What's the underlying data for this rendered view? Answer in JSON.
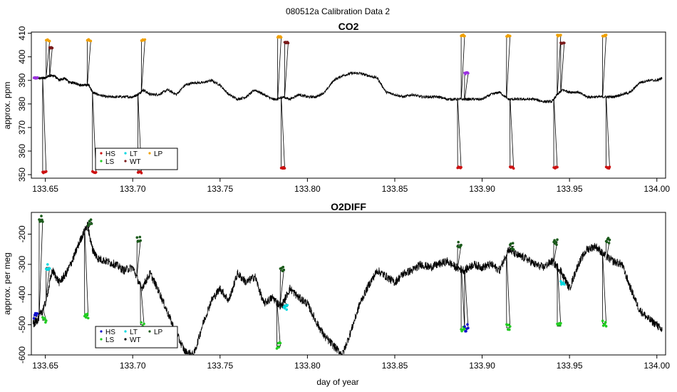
{
  "title": "080512a   Calibration Data 2",
  "xlabel": "day of year",
  "x_ticks": [
    "133.65",
    "133.70",
    "133.75",
    "133.80",
    "133.85",
    "133.90",
    "133.95",
    "134.00"
  ],
  "x_tick_values": [
    133.65,
    133.7,
    133.75,
    133.8,
    133.85,
    133.9,
    133.95,
    134.0
  ],
  "xlim": [
    133.642,
    134.005
  ],
  "colors": {
    "HS": "#cc1111",
    "LS": "#22cc22",
    "LT": "#00d8e0",
    "WT": "#7a1a1a",
    "LP": "#f0a000",
    "HS_O2": "#1111cc",
    "LS_O2": "#22cc22",
    "LT_O2": "#00d8e0",
    "WT_O2": "#000000",
    "LP_O2": "#1a5a1a",
    "purple": "#9a30e0",
    "trace": "#000000"
  },
  "chart_data": [
    {
      "type": "line",
      "title": "CO2",
      "ylabel": "approx. ppm",
      "ylim": [
        348.5,
        410.5
      ],
      "y_ticks": [
        "350",
        "360",
        "370",
        "380",
        "390",
        "400",
        "410"
      ],
      "y_tick_values": [
        350,
        360,
        370,
        380,
        390,
        400,
        410
      ],
      "legend": {
        "placement": "bottom-left",
        "entries": [
          {
            "label": "HS",
            "color": "#cc1111"
          },
          {
            "label": "LT",
            "color": "#00d8e0"
          },
          {
            "label": "LP",
            "color": "#f0a000"
          },
          {
            "label": "LS",
            "color": "#22cc22"
          },
          {
            "label": "WT",
            "color": "#7a1a1a"
          }
        ]
      },
      "baseline": {
        "x": [
          133.643,
          133.6455,
          133.648,
          133.65,
          133.652,
          133.655,
          133.658,
          133.661,
          133.664,
          133.667,
          133.67,
          133.673,
          133.675,
          133.677,
          133.68,
          133.685,
          133.69,
          133.695,
          133.7,
          133.703,
          133.706,
          133.71,
          133.715,
          133.72,
          133.725,
          133.73,
          133.735,
          133.74,
          133.745,
          133.75,
          133.755,
          133.76,
          133.765,
          133.77,
          133.775,
          133.78,
          133.783,
          133.786,
          133.79,
          133.795,
          133.8,
          133.805,
          133.81,
          133.815,
          133.82,
          133.825,
          133.83,
          133.835,
          133.84,
          133.845,
          133.85,
          133.855,
          133.86,
          133.865,
          133.87,
          133.875,
          133.88,
          133.885,
          133.89,
          133.895,
          133.9,
          133.905,
          133.91,
          133.915,
          133.92,
          133.925,
          133.93,
          133.935,
          133.94,
          133.943,
          133.946,
          133.95,
          133.955,
          133.96,
          133.965,
          133.97,
          133.975,
          133.98,
          133.985,
          133.99,
          133.995,
          134.0,
          134.003
        ],
        "y": [
          391,
          391,
          391,
          391,
          392,
          392,
          390,
          391,
          389,
          389,
          388,
          388,
          388,
          385,
          384,
          383,
          383,
          383,
          383,
          384,
          386,
          384,
          384,
          386,
          384,
          388,
          389,
          389,
          390,
          388,
          384,
          382,
          383,
          386,
          384,
          382,
          382,
          383,
          382,
          384,
          383,
          383,
          385,
          390,
          392,
          393,
          393,
          392,
          391,
          385,
          384,
          383,
          384,
          383,
          383,
          383,
          382,
          382,
          382,
          382,
          382,
          384,
          385,
          382,
          382,
          382,
          382,
          381,
          381,
          384,
          386,
          385,
          385,
          383,
          383,
          383,
          383,
          384,
          385,
          389,
          390,
          390,
          391
        ]
      },
      "calibrations": [
        {
          "x_start": 133.6485,
          "x_end": 133.6505,
          "value": 351,
          "gas": "HS"
        },
        {
          "x_start": 133.6505,
          "x_end": 133.6525,
          "value": 407,
          "gas": "LP"
        },
        {
          "x_start": 133.6525,
          "x_end": 133.654,
          "value": 404,
          "gas": "WT"
        },
        {
          "x_start": 133.674,
          "x_end": 133.676,
          "value": 407,
          "gas": "LP"
        },
        {
          "x_start": 133.677,
          "x_end": 133.679,
          "value": 351,
          "gas": "HS"
        },
        {
          "x_start": 133.703,
          "x_end": 133.705,
          "value": 351,
          "gas": "HS"
        },
        {
          "x_start": 133.705,
          "x_end": 133.707,
          "value": 407,
          "gas": "LP"
        },
        {
          "x_start": 133.783,
          "x_end": 133.785,
          "value": 408.5,
          "gas": "LP"
        },
        {
          "x_start": 133.785,
          "x_end": 133.787,
          "value": 353,
          "gas": "HS"
        },
        {
          "x_start": 133.787,
          "x_end": 133.789,
          "value": 406,
          "gas": "WT"
        },
        {
          "x_start": 133.886,
          "x_end": 133.888,
          "value": 353,
          "gas": "HS"
        },
        {
          "x_start": 133.888,
          "x_end": 133.89,
          "value": 409,
          "gas": "LP"
        },
        {
          "x_start": 133.89,
          "x_end": 133.892,
          "value": 393,
          "gas": "purple"
        },
        {
          "x_start": 133.914,
          "x_end": 133.916,
          "value": 409,
          "gas": "LP"
        },
        {
          "x_start": 133.916,
          "x_end": 133.918,
          "value": 353,
          "gas": "HS"
        },
        {
          "x_start": 133.941,
          "x_end": 133.943,
          "value": 353,
          "gas": "HS"
        },
        {
          "x_start": 133.943,
          "x_end": 133.945,
          "value": 409,
          "gas": "LP"
        },
        {
          "x_start": 133.945,
          "x_end": 133.947,
          "value": 406,
          "gas": "WT"
        },
        {
          "x_start": 133.969,
          "x_end": 133.971,
          "value": 409,
          "gas": "LP"
        },
        {
          "x_start": 133.971,
          "x_end": 133.973,
          "value": 353,
          "gas": "HS"
        },
        {
          "x_start": 133.6435,
          "x_end": 133.6455,
          "value": 391,
          "gas": "purple"
        }
      ]
    },
    {
      "type": "line",
      "title": "O2DIFF",
      "ylabel": "approx. per meg",
      "ylim": [
        -600,
        -128
      ],
      "y_ticks": [
        "-600",
        "-500",
        "-400",
        "-300",
        "-200"
      ],
      "y_tick_values": [
        -600,
        -500,
        -400,
        -300,
        -200
      ],
      "legend": {
        "placement": "bottom-left",
        "entries": [
          {
            "label": "HS",
            "color": "#1111cc"
          },
          {
            "label": "LT",
            "color": "#00d8e0"
          },
          {
            "label": "LP",
            "color": "#1a5a1a"
          },
          {
            "label": "LS",
            "color": "#22cc22"
          },
          {
            "label": "WT",
            "color": "#000000"
          }
        ]
      },
      "baseline": {
        "x": [
          133.643,
          133.646,
          133.65,
          133.654,
          133.658,
          133.662,
          133.666,
          133.67,
          133.674,
          133.677,
          133.68,
          133.685,
          133.69,
          133.695,
          133.7,
          133.705,
          133.71,
          133.715,
          133.72,
          133.725,
          133.73,
          133.735,
          133.74,
          133.745,
          133.75,
          133.755,
          133.76,
          133.765,
          133.77,
          133.775,
          133.78,
          133.785,
          133.79,
          133.795,
          133.8,
          133.805,
          133.81,
          133.815,
          133.82,
          133.825,
          133.83,
          133.835,
          133.84,
          133.845,
          133.85,
          133.855,
          133.86,
          133.865,
          133.87,
          133.875,
          133.88,
          133.885,
          133.89,
          133.895,
          133.9,
          133.905,
          133.91,
          133.915,
          133.92,
          133.925,
          133.93,
          133.935,
          133.94,
          133.945,
          133.95,
          133.955,
          133.96,
          133.965,
          133.97,
          133.975,
          133.98,
          133.985,
          133.99,
          133.995,
          134.0,
          134.003
        ],
        "y": [
          -500,
          -480,
          -430,
          -320,
          -360,
          -330,
          -280,
          -220,
          -170,
          -250,
          -280,
          -290,
          -300,
          -320,
          -310,
          -380,
          -330,
          -390,
          -460,
          -530,
          -590,
          -600,
          -500,
          -420,
          -380,
          -420,
          -330,
          -360,
          -340,
          -430,
          -410,
          -440,
          -380,
          -410,
          -430,
          -490,
          -540,
          -570,
          -600,
          -520,
          -430,
          -370,
          -320,
          -340,
          -360,
          -330,
          -320,
          -300,
          -310,
          -300,
          -290,
          -310,
          -320,
          -300,
          -310,
          -300,
          -320,
          -250,
          -270,
          -280,
          -300,
          -310,
          -290,
          -320,
          -380,
          -300,
          -250,
          -240,
          -270,
          -290,
          -300,
          -380,
          -450,
          -480,
          -500,
          -520
        ]
      },
      "calibrations": [
        {
          "x_start": 133.6435,
          "x_end": 133.6455,
          "value": -470,
          "gas": "HS_O2"
        },
        {
          "x_start": 133.6465,
          "x_end": 133.6485,
          "value": -150,
          "gas": "LP_O2"
        },
        {
          "x_start": 133.6485,
          "x_end": 133.6505,
          "value": -485,
          "gas": "LS_O2"
        },
        {
          "x_start": 133.6505,
          "x_end": 133.6525,
          "value": -310,
          "gas": "LT_O2"
        },
        {
          "x_start": 133.6725,
          "x_end": 133.6745,
          "value": -470,
          "gas": "LS_O2"
        },
        {
          "x_start": 133.6745,
          "x_end": 133.6765,
          "value": -160,
          "gas": "LP_O2"
        },
        {
          "x_start": 133.7025,
          "x_end": 133.7045,
          "value": -220,
          "gas": "LP_O2"
        },
        {
          "x_start": 133.7045,
          "x_end": 133.7065,
          "value": -500,
          "gas": "LS_O2"
        },
        {
          "x_start": 133.7825,
          "x_end": 133.7845,
          "value": -570,
          "gas": "LS_O2"
        },
        {
          "x_start": 133.7845,
          "x_end": 133.7865,
          "value": -320,
          "gas": "LP_O2"
        },
        {
          "x_start": 133.7865,
          "x_end": 133.7885,
          "value": -440,
          "gas": "LT_O2"
        },
        {
          "x_start": 133.886,
          "x_end": 133.888,
          "value": -235,
          "gas": "LP_O2"
        },
        {
          "x_start": 133.888,
          "x_end": 133.89,
          "value": -515,
          "gas": "LS_O2"
        },
        {
          "x_start": 133.89,
          "x_end": 133.892,
          "value": -510,
          "gas": "HS_O2"
        },
        {
          "x_start": 133.914,
          "x_end": 133.916,
          "value": -510,
          "gas": "LS_O2"
        },
        {
          "x_start": 133.916,
          "x_end": 133.918,
          "value": -240,
          "gas": "LP_O2"
        },
        {
          "x_start": 133.941,
          "x_end": 133.943,
          "value": -225,
          "gas": "LP_O2"
        },
        {
          "x_start": 133.943,
          "x_end": 133.945,
          "value": -505,
          "gas": "LS_O2"
        },
        {
          "x_start": 133.945,
          "x_end": 133.947,
          "value": -365,
          "gas": "LT_O2"
        },
        {
          "x_start": 133.969,
          "x_end": 133.971,
          "value": -495,
          "gas": "LS_O2"
        },
        {
          "x_start": 133.971,
          "x_end": 133.973,
          "value": -220,
          "gas": "LP_O2"
        }
      ]
    }
  ]
}
